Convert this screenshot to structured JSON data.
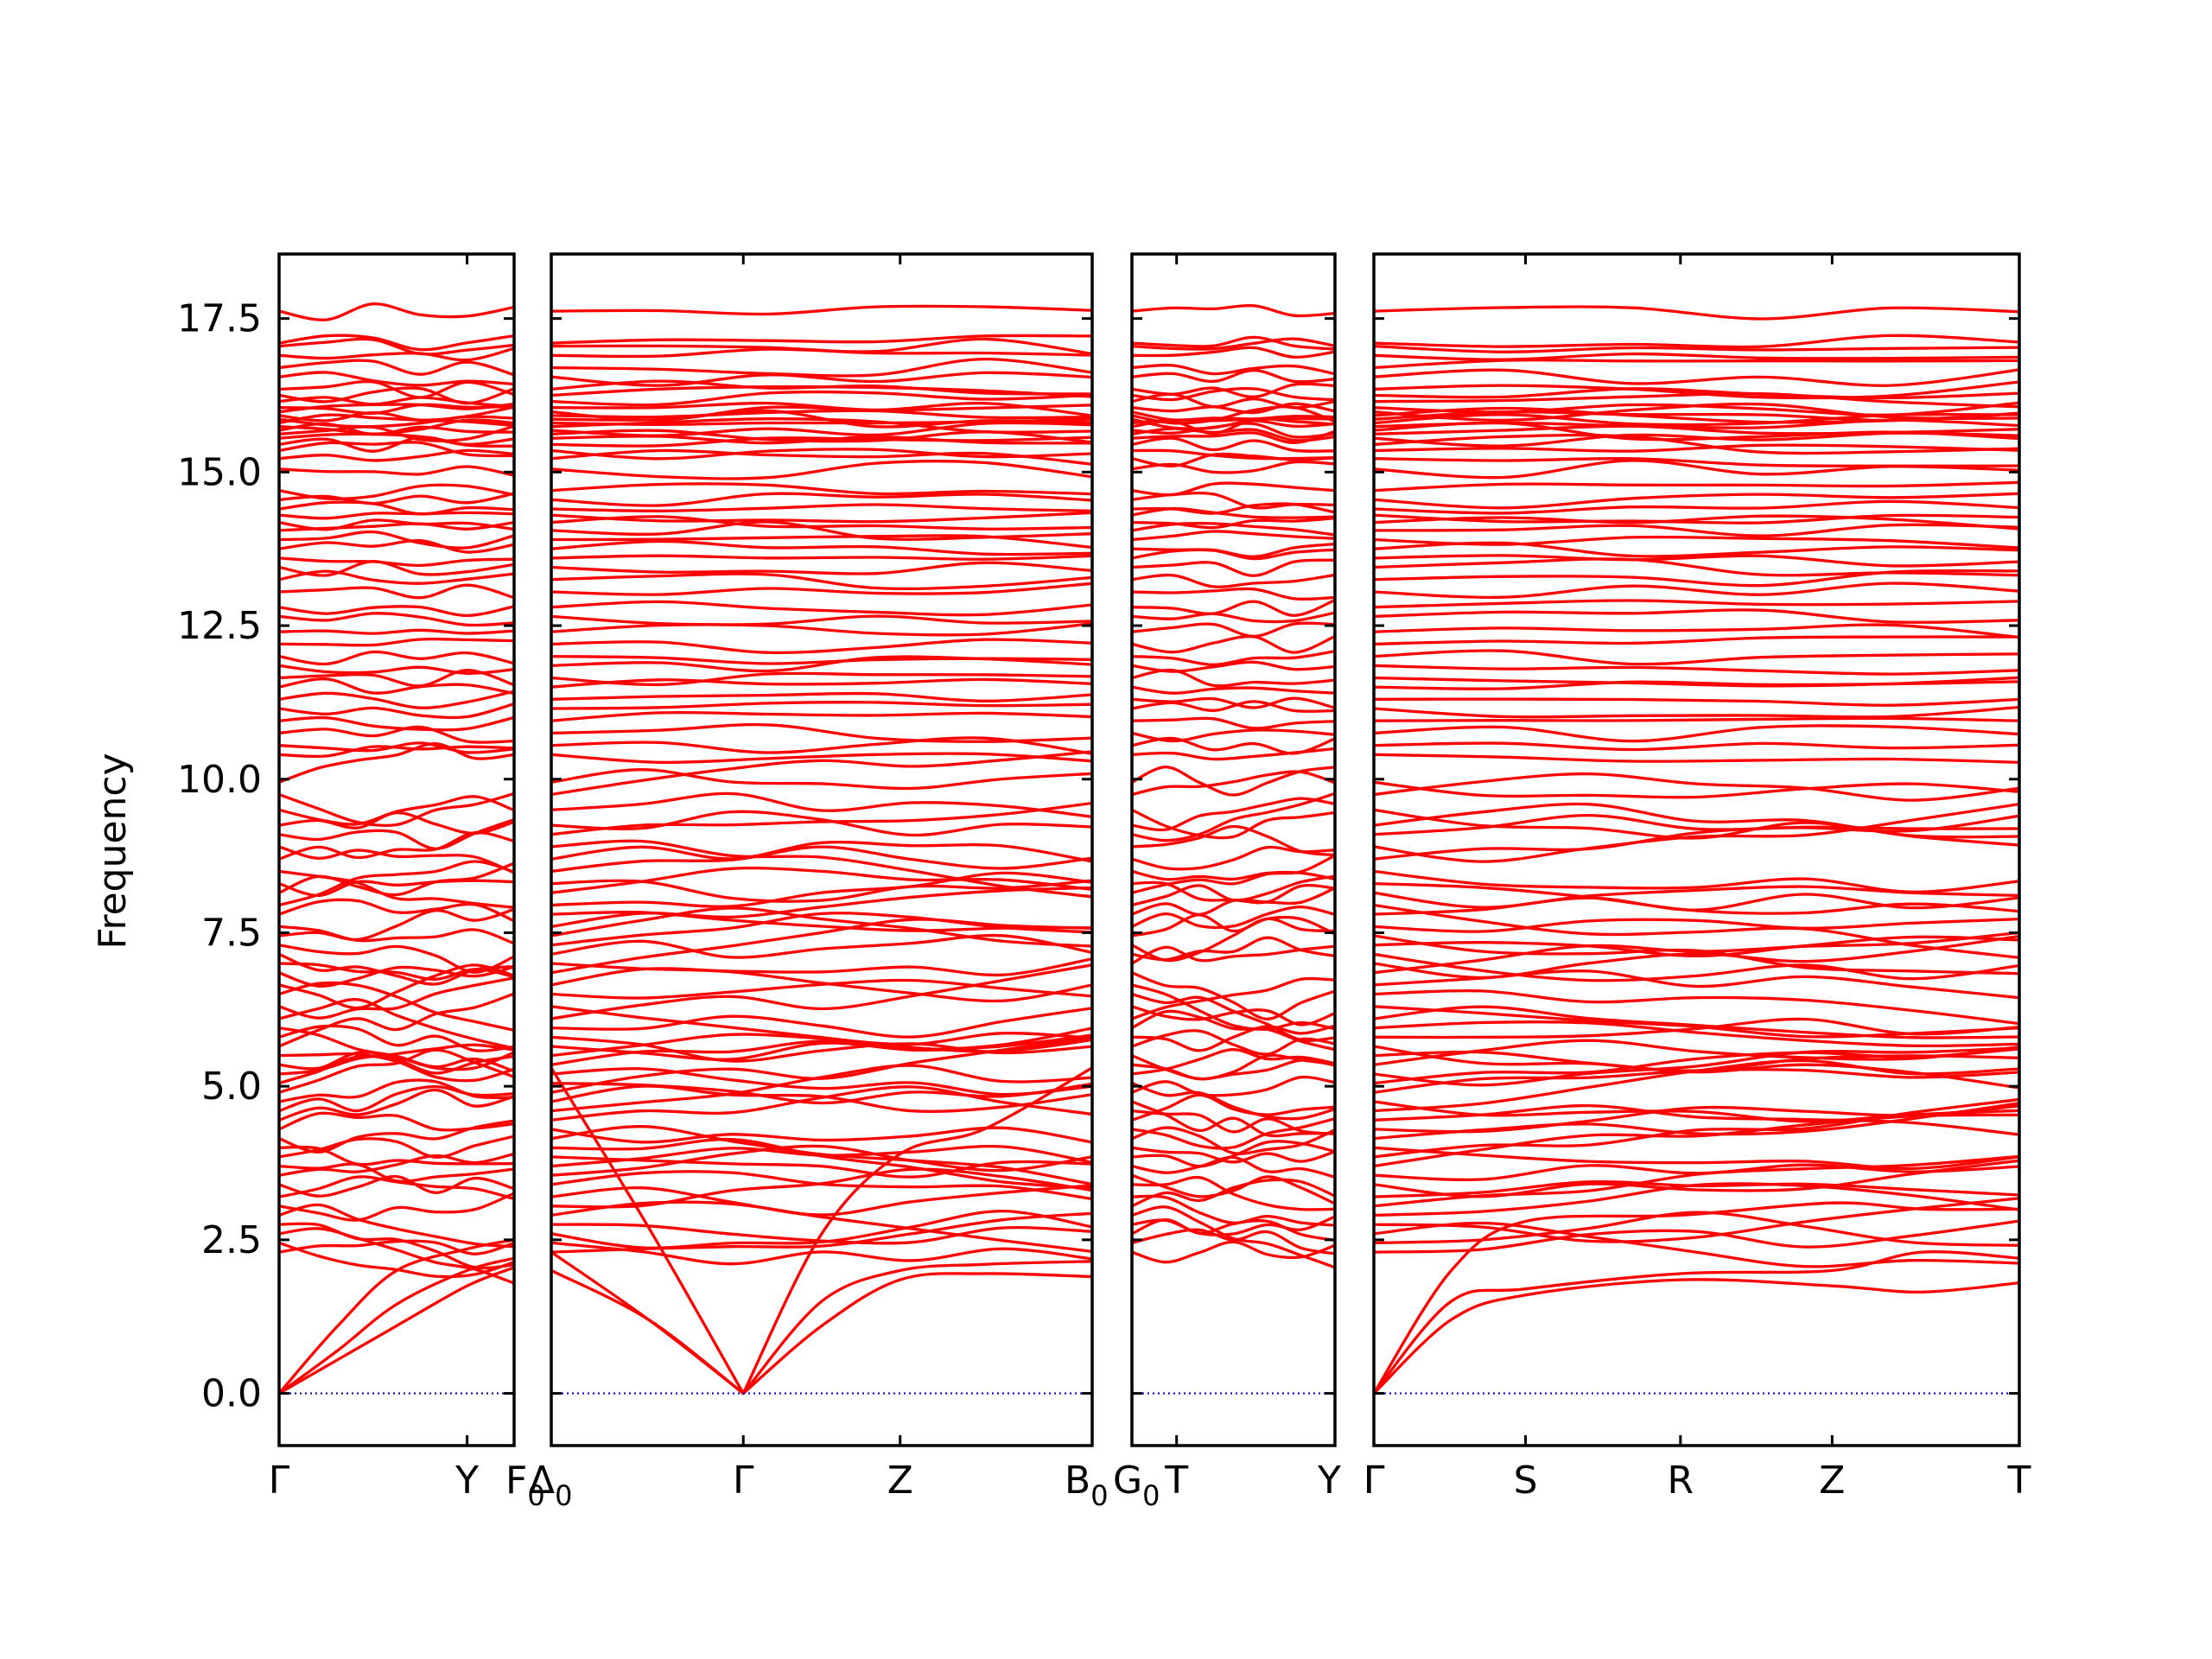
{
  "chart_data": {
    "type": "line",
    "title": "",
    "xlabel": "",
    "ylabel": "Frequency",
    "ylim": [
      -0.85,
      18.55
    ],
    "yticks": [
      "0.0",
      "2.5",
      "5.0",
      "7.5",
      "10.0",
      "12.5",
      "15.0",
      "17.5"
    ],
    "grid": false,
    "legend": "none",
    "colors": {
      "bands": "#ff0000",
      "zero_line": "#0000cc",
      "axes": "#000000"
    },
    "panels": [
      {
        "x_labels": [
          {
            "label": "Γ",
            "pos": 0.0
          },
          {
            "label": "Y",
            "pos": 0.8
          }
        ]
      },
      {
        "x_labels": [
          {
            "label": "Γ",
            "pos": 0.355
          },
          {
            "label": "Z",
            "pos": 0.645
          }
        ]
      },
      {
        "x_labels": [
          {
            "label": "T",
            "pos": 0.22
          }
        ]
      },
      {
        "x_labels": [
          {
            "label": "Γ",
            "pos": 0.0
          },
          {
            "label": "S",
            "pos": 0.235
          },
          {
            "label": "R",
            "pos": 0.475
          },
          {
            "label": "Z",
            "pos": 0.71
          },
          {
            "label": "T",
            "pos": 1.0
          }
        ]
      }
    ],
    "boundary_labels": [
      {
        "base": "F",
        "sub": "0"
      },
      {
        "base": "Δ",
        "sub": "0"
      },
      {
        "base": "B",
        "sub": "0"
      },
      {
        "base": "G",
        "sub": "0"
      },
      {
        "base": "Y",
        "sub": ""
      },
      {
        "base": "Γ",
        "sub": ""
      }
    ],
    "bands": {
      "upper_levels": [
        17.62,
        17.1,
        17.05,
        16.9,
        16.7,
        16.55,
        16.35,
        16.25,
        16.15,
        16.05,
        15.98,
        15.92,
        15.86,
        15.8,
        15.74,
        15.68,
        15.62,
        15.55,
        15.45,
        15.35,
        15.22,
        15.05,
        14.7,
        14.55,
        14.4,
        14.3,
        14.18,
        14.05,
        13.9,
        13.75,
        13.6,
        13.45,
        13.25,
        13.05,
        12.8,
        12.65,
        12.4,
        12.2,
        12.0,
        11.85,
        11.65,
        11.5,
        11.3,
        11.15,
        10.95,
        10.75,
        10.55,
        10.4
      ],
      "mid_levels": [
        9.95,
        9.75,
        9.5,
        9.25,
        9.1,
        8.9,
        8.7,
        8.5,
        8.3,
        8.15,
        7.95,
        7.8,
        7.6,
        7.45,
        7.3,
        7.15,
        7.0,
        6.85,
        6.65,
        6.5,
        6.3,
        6.1,
        5.95,
        5.8,
        5.65,
        5.5,
        5.35,
        5.2,
        5.05,
        4.9,
        4.75,
        4.6,
        4.45,
        4.3,
        4.15,
        4.0,
        3.85,
        3.7,
        3.55,
        3.4,
        3.2,
        3.05,
        2.9,
        2.75,
        2.6,
        2.45,
        2.3
      ],
      "acoustic": [
        {
          "panel": 0,
          "x": [
            0.0,
            0.25,
            0.5,
            0.8,
            1.0
          ],
          "y": [
            0.0,
            0.55,
            1.1,
            1.75,
            2.05
          ]
        },
        {
          "panel": 0,
          "x": [
            0.0,
            0.25,
            0.5,
            0.8,
            1.0
          ],
          "y": [
            0.0,
            0.7,
            1.45,
            2.0,
            2.2
          ]
        },
        {
          "panel": 0,
          "x": [
            0.0,
            0.25,
            0.5,
            0.8,
            1.0
          ],
          "y": [
            0.0,
            1.1,
            2.0,
            2.35,
            2.5
          ]
        },
        {
          "panel": 1,
          "x": [
            0.0,
            0.18,
            0.355
          ],
          "y": [
            2.3,
            1.2,
            0.0
          ]
        },
        {
          "panel": 1,
          "x": [
            0.0,
            0.18,
            0.355
          ],
          "y": [
            5.3,
            2.7,
            0.0
          ]
        },
        {
          "panel": 1,
          "x": [
            0.0,
            0.18,
            0.355
          ],
          "y": [
            2.0,
            1.2,
            0.0
          ]
        },
        {
          "panel": 1,
          "x": [
            0.355,
            0.5,
            0.645,
            0.8,
            1.0
          ],
          "y": [
            0.0,
            1.1,
            1.85,
            1.95,
            1.9
          ]
        },
        {
          "panel": 1,
          "x": [
            0.355,
            0.5,
            0.645,
            0.8,
            1.0
          ],
          "y": [
            0.0,
            1.5,
            2.0,
            2.1,
            2.15
          ]
        },
        {
          "panel": 1,
          "x": [
            0.355,
            0.5,
            0.645,
            0.8,
            1.0
          ],
          "y": [
            0.0,
            2.6,
            3.9,
            4.3,
            5.3
          ]
        },
        {
          "panel": 3,
          "x": [
            0.0,
            0.12,
            0.235,
            0.475,
            0.71,
            0.85,
            1.0
          ],
          "y": [
            0.0,
            1.2,
            1.6,
            1.85,
            1.75,
            1.65,
            1.8
          ]
        },
        {
          "panel": 3,
          "x": [
            0.0,
            0.12,
            0.235,
            0.475,
            0.71,
            0.85,
            1.0
          ],
          "y": [
            0.0,
            1.5,
            1.7,
            1.95,
            2.0,
            2.3,
            2.2
          ]
        },
        {
          "panel": 3,
          "x": [
            0.0,
            0.12,
            0.235,
            0.475,
            0.71,
            0.85,
            1.0
          ],
          "y": [
            0.0,
            2.0,
            2.8,
            2.9,
            3.1,
            3.0,
            3.0
          ]
        }
      ]
    }
  }
}
